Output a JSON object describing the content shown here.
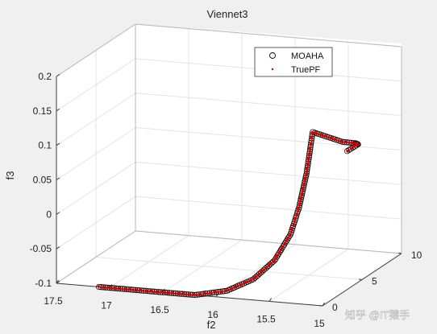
{
  "chart_data": {
    "type": "scatter",
    "projection": "3d",
    "title": "Viennet3",
    "xlabel": "",
    "ylabel": "f2",
    "zlabel": "f3",
    "xticks": [
      "0",
      "5",
      "10"
    ],
    "yticks": [
      "17.5",
      "17",
      "16.5",
      "16",
      "15.5",
      "15"
    ],
    "zticks": [
      "-0.1",
      "-0.05",
      "0",
      "0.05",
      "0.1",
      "0.15",
      "0.2"
    ],
    "x_range": [
      0,
      10
    ],
    "y_range": [
      15,
      17.5
    ],
    "z_range": [
      -0.1,
      0.2
    ],
    "grid": true,
    "legend_position": "top-right",
    "series": [
      {
        "name": "MOAHA",
        "marker": "circle",
        "color": "#000000"
      },
      {
        "name": "TruePF",
        "marker": "dot",
        "color": "#d00000"
      }
    ],
    "curve_samples": [
      {
        "x": 0.0,
        "y": 17.1,
        "z": -0.1
      },
      {
        "x": 0.0,
        "y": 16.6,
        "z": -0.1
      },
      {
        "x": 0.0,
        "y": 16.2,
        "z": -0.1
      },
      {
        "x": 0.0,
        "y": 15.9,
        "z": -0.09
      },
      {
        "x": 0.0,
        "y": 15.65,
        "z": -0.07
      },
      {
        "x": 0.0,
        "y": 15.45,
        "z": -0.04
      },
      {
        "x": 0.0,
        "y": 15.3,
        "z": 0.0
      },
      {
        "x": 0.0,
        "y": 15.22,
        "z": 0.04
      },
      {
        "x": 0.0,
        "y": 15.15,
        "z": 0.09
      },
      {
        "x": 0.05,
        "y": 15.12,
        "z": 0.125
      },
      {
        "x": 0.1,
        "y": 15.1,
        "z": 0.15
      },
      {
        "x": 1.2,
        "y": 14.9,
        "z": 0.13
      },
      {
        "x": 3.5,
        "y": 14.95,
        "z": 0.11
      },
      {
        "x": 4.5,
        "y": 15.0,
        "z": 0.1
      },
      {
        "x": 3.8,
        "y": 15.05,
        "z": 0.095
      }
    ]
  },
  "watermark": "知乎 @IT猿手"
}
